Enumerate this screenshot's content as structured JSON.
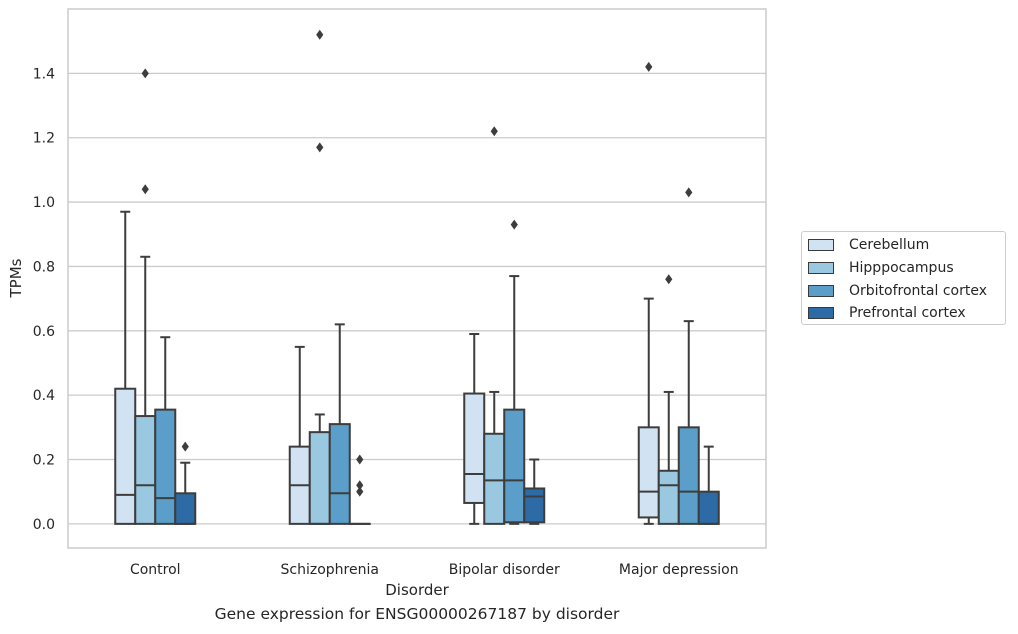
{
  "chart_data": {
    "type": "box",
    "title": "",
    "caption": "Gene expression for ENSG00000267187 by disorder",
    "xlabel": "Disorder",
    "ylabel": "TPMs",
    "ylim": [
      -0.075,
      1.6
    ],
    "yticks": [
      0.0,
      0.2,
      0.4,
      0.6,
      0.8,
      1.0,
      1.2,
      1.4
    ],
    "ytick_labels": [
      "0.0",
      "0.2",
      "0.4",
      "0.6",
      "0.8",
      "1.0",
      "1.2",
      "1.4"
    ],
    "grid": "horizontal",
    "legend_position": "right",
    "categories": [
      "Control",
      "Schizophrenia",
      "Bipolar disorder",
      "Major depression"
    ],
    "series": [
      {
        "name": "Cerebellum",
        "color": "#d1e2f2",
        "boxes": [
          {
            "whislo": 0.0,
            "q1": 0.0,
            "med": 0.09,
            "q3": 0.42,
            "whishi": 0.97,
            "fliers": []
          },
          {
            "whislo": 0.0,
            "q1": 0.0,
            "med": 0.12,
            "q3": 0.24,
            "whishi": 0.55,
            "fliers": []
          },
          {
            "whislo": 0.0,
            "q1": 0.065,
            "med": 0.155,
            "q3": 0.405,
            "whishi": 0.59,
            "fliers": []
          },
          {
            "whislo": 0.0,
            "q1": 0.02,
            "med": 0.1,
            "q3": 0.3,
            "whishi": 0.7,
            "fliers": [
              1.42
            ]
          }
        ]
      },
      {
        "name": "Hipppocampus",
        "color": "#9ac8e0",
        "boxes": [
          {
            "whislo": 0.0,
            "q1": 0.0,
            "med": 0.12,
            "q3": 0.335,
            "whishi": 0.83,
            "fliers": [
              1.4,
              1.04
            ]
          },
          {
            "whislo": 0.0,
            "q1": 0.0,
            "med": 0.0,
            "q3": 0.285,
            "whishi": 0.34,
            "fliers": [
              1.52,
              1.17
            ]
          },
          {
            "whislo": 0.0,
            "q1": 0.0,
            "med": 0.135,
            "q3": 0.28,
            "whishi": 0.41,
            "fliers": [
              1.22
            ]
          },
          {
            "whislo": 0.0,
            "q1": 0.0,
            "med": 0.12,
            "q3": 0.165,
            "whishi": 0.41,
            "fliers": [
              0.76
            ]
          }
        ]
      },
      {
        "name": "Orbitofrontal cortex",
        "color": "#5a9ec9",
        "boxes": [
          {
            "whislo": 0.0,
            "q1": 0.0,
            "med": 0.08,
            "q3": 0.355,
            "whishi": 0.58,
            "fliers": []
          },
          {
            "whislo": 0.0,
            "q1": 0.0,
            "med": 0.095,
            "q3": 0.31,
            "whishi": 0.62,
            "fliers": []
          },
          {
            "whislo": 0.0,
            "q1": 0.005,
            "med": 0.135,
            "q3": 0.355,
            "whishi": 0.77,
            "fliers": [
              0.93
            ]
          },
          {
            "whislo": 0.0,
            "q1": 0.0,
            "med": 0.1,
            "q3": 0.3,
            "whishi": 0.63,
            "fliers": [
              1.03
            ]
          }
        ]
      },
      {
        "name": "Prefrontal cortex",
        "color": "#2c6ba6",
        "boxes": [
          {
            "whislo": 0.0,
            "q1": 0.0,
            "med": 0.0,
            "q3": 0.095,
            "whishi": 0.19,
            "fliers": [
              0.24
            ]
          },
          {
            "whislo": 0.0,
            "q1": 0.0,
            "med": 0.0,
            "q3": 0.0,
            "whishi": 0.0,
            "fliers": [
              0.2,
              0.12,
              0.1
            ]
          },
          {
            "whislo": 0.0,
            "q1": 0.005,
            "med": 0.085,
            "q3": 0.11,
            "whishi": 0.2,
            "fliers": []
          },
          {
            "whislo": 0.0,
            "q1": 0.0,
            "med": 0.0,
            "q3": 0.1,
            "whishi": 0.24,
            "fliers": []
          }
        ]
      }
    ]
  }
}
